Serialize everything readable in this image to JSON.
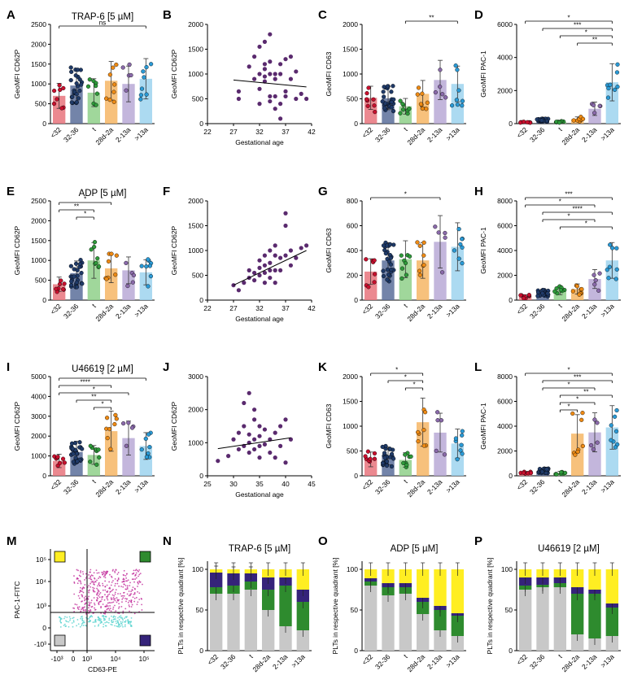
{
  "chart_data": [
    {
      "id": "A",
      "type": "bar",
      "title": "TRAP-6 [5 µM]",
      "ylabel": "GeoMFI CD62P",
      "categories": [
        "<32",
        "32-36",
        "t",
        "28d-2a",
        "2-13a",
        ">13a"
      ],
      "values": [
        700,
        960,
        780,
        1080,
        1000,
        1130
      ],
      "ylim": [
        0,
        2500
      ],
      "yticks": [
        0,
        500,
        1000,
        1500,
        2000,
        2500
      ],
      "annotations": [
        {
          "from": 0,
          "to": 5,
          "label": "ns"
        }
      ]
    },
    {
      "id": "B",
      "type": "scatter",
      "ylabel": "GeoMFI CD62P",
      "xlabel": "Gestational age",
      "xlim": [
        22,
        42
      ],
      "ylim": [
        0,
        2000
      ],
      "xticks": [
        22,
        27,
        32,
        37,
        42
      ],
      "yticks": [
        0,
        500,
        1000,
        1500,
        2000
      ],
      "points": [
        [
          28,
          500
        ],
        [
          28,
          650
        ],
        [
          30,
          1150
        ],
        [
          31,
          900
        ],
        [
          31,
          1350
        ],
        [
          32,
          1000
        ],
        [
          32,
          1550
        ],
        [
          32,
          700
        ],
        [
          32,
          400
        ],
        [
          33,
          1200
        ],
        [
          33,
          1100
        ],
        [
          33,
          950
        ],
        [
          33,
          850
        ],
        [
          33,
          1650
        ],
        [
          34,
          1000
        ],
        [
          34,
          1800
        ],
        [
          34,
          1250
        ],
        [
          34,
          550
        ],
        [
          34,
          450
        ],
        [
          35,
          1000
        ],
        [
          35,
          900
        ],
        [
          35,
          300
        ],
        [
          35,
          550
        ],
        [
          36,
          1200
        ],
        [
          36,
          1000
        ],
        [
          36,
          400
        ],
        [
          36,
          100
        ],
        [
          37,
          1300
        ],
        [
          37,
          650
        ],
        [
          37,
          550
        ],
        [
          38,
          1350
        ],
        [
          38,
          900
        ],
        [
          39,
          1050
        ],
        [
          39,
          500
        ],
        [
          40,
          600
        ],
        [
          41,
          500
        ]
      ],
      "trend": [
        [
          27,
          880
        ],
        [
          41,
          740
        ]
      ]
    },
    {
      "id": "C",
      "type": "bar",
      "title": "",
      "ylabel": "GeoMFI CD63",
      "categories": [
        "<32",
        "32-36",
        "t",
        "28d-2a",
        "2-13a",
        ">13a"
      ],
      "values": [
        520,
        510,
        350,
        600,
        880,
        800
      ],
      "ylim": [
        0,
        2000
      ],
      "yticks": [
        0,
        500,
        1000,
        1500,
        2000
      ],
      "annotations": [
        {
          "from": 2,
          "to": 5,
          "label": "**"
        }
      ]
    },
    {
      "id": "D",
      "type": "bar",
      "title": "",
      "ylabel": "GeoMFI PAC-1",
      "categories": [
        "<32",
        "32-36",
        "t",
        "28d-2a",
        "2-13a",
        ">13a"
      ],
      "values": [
        100,
        200,
        100,
        280,
        900,
        2500
      ],
      "ylim": [
        0,
        6000
      ],
      "yticks": [
        0,
        2000,
        4000,
        6000
      ],
      "annotations": [
        {
          "from": 0,
          "to": 5,
          "label": "*"
        },
        {
          "from": 1,
          "to": 5,
          "label": "***"
        },
        {
          "from": 2,
          "to": 5,
          "label": "*"
        },
        {
          "from": 3,
          "to": 5,
          "label": "**"
        }
      ]
    },
    {
      "id": "E",
      "type": "bar",
      "title": "ADP [5 µM]",
      "ylabel": "GeoMFI CD62P",
      "categories": [
        "<32",
        "32-36",
        "t",
        "28d-2a",
        "2-13a",
        ">13a"
      ],
      "values": [
        400,
        680,
        1000,
        800,
        750,
        700
      ],
      "ylim": [
        0,
        2500
      ],
      "yticks": [
        0,
        500,
        1000,
        1500,
        2000,
        2500
      ],
      "annotations": [
        {
          "from": 0,
          "to": 3,
          "label": "*"
        },
        {
          "from": 0,
          "to": 2,
          "label": "**"
        },
        {
          "from": 1,
          "to": 2,
          "label": "*"
        }
      ]
    },
    {
      "id": "F",
      "type": "scatter",
      "ylabel": "GeoMFI CD62P",
      "xlabel": "Gestational age",
      "xlim": [
        22,
        42
      ],
      "ylim": [
        0,
        2000
      ],
      "xticks": [
        22,
        27,
        32,
        37,
        42
      ],
      "yticks": [
        0,
        500,
        1000,
        1500,
        2000
      ],
      "points": [
        [
          27,
          300
        ],
        [
          28,
          200
        ],
        [
          29,
          350
        ],
        [
          30,
          450
        ],
        [
          30,
          600
        ],
        [
          31,
          400
        ],
        [
          31,
          550
        ],
        [
          32,
          500
        ],
        [
          32,
          650
        ],
        [
          32,
          800
        ],
        [
          33,
          350
        ],
        [
          33,
          550
        ],
        [
          33,
          700
        ],
        [
          33,
          900
        ],
        [
          34,
          450
        ],
        [
          34,
          600
        ],
        [
          34,
          750
        ],
        [
          34,
          1000
        ],
        [
          35,
          350
        ],
        [
          35,
          600
        ],
        [
          35,
          900
        ],
        [
          35,
          1100
        ],
        [
          36,
          600
        ],
        [
          36,
          850
        ],
        [
          37,
          900
        ],
        [
          37,
          1750
        ],
        [
          37,
          1500
        ],
        [
          38,
          700
        ],
        [
          38,
          1000
        ],
        [
          39,
          850
        ],
        [
          40,
          1050
        ],
        [
          41,
          1100
        ]
      ],
      "trend": [
        [
          27,
          300
        ],
        [
          41,
          1000
        ]
      ]
    },
    {
      "id": "G",
      "type": "bar",
      "title": "",
      "ylabel": "GeoMFI CD63",
      "categories": [
        "<32",
        "32-36",
        "t",
        "28d-2a",
        "2-13a",
        ">13a"
      ],
      "values": [
        230,
        320,
        330,
        320,
        470,
        430
      ],
      "ylim": [
        0,
        800
      ],
      "yticks": [
        0,
        200,
        400,
        600,
        800
      ],
      "annotations": [
        {
          "from": 0,
          "to": 4,
          "label": "*"
        }
      ]
    },
    {
      "id": "H",
      "type": "bar",
      "title": "",
      "ylabel": "GeoMFI PAC-1",
      "categories": [
        "<32",
        "32-36",
        "t",
        "28d-2a",
        "2-13a",
        ">13a"
      ],
      "values": [
        300,
        600,
        800,
        900,
        1700,
        3200
      ],
      "ylim": [
        0,
        8000
      ],
      "yticks": [
        0,
        2000,
        4000,
        6000,
        8000
      ],
      "annotations": [
        {
          "from": 0,
          "to": 5,
          "label": "***"
        },
        {
          "from": 0,
          "to": 4,
          "label": "*"
        },
        {
          "from": 1,
          "to": 5,
          "label": "****"
        },
        {
          "from": 1,
          "to": 4,
          "label": "*"
        },
        {
          "from": 2,
          "to": 5,
          "label": "*"
        }
      ]
    },
    {
      "id": "I",
      "type": "bar",
      "title": "U46619 [2 µM]",
      "ylabel": "GeoMFI CD62P",
      "categories": [
        "<32",
        "32-36",
        "t",
        "28d-2a",
        "2-13a",
        ">13a"
      ],
      "values": [
        750,
        1200,
        1050,
        2250,
        1900,
        1500
      ],
      "ylim": [
        0,
        5000
      ],
      "yticks": [
        0,
        1000,
        2000,
        3000,
        4000,
        5000
      ],
      "annotations": [
        {
          "from": 0,
          "to": 5,
          "label": "*"
        },
        {
          "from": 0,
          "to": 3,
          "label": "****"
        },
        {
          "from": 0,
          "to": 4,
          "label": "*"
        },
        {
          "from": 1,
          "to": 3,
          "label": "**"
        },
        {
          "from": 2,
          "to": 3,
          "label": "*"
        }
      ]
    },
    {
      "id": "J",
      "type": "scatter",
      "ylabel": "GeoMFI CD62P",
      "xlabel": "Gestational age",
      "xlim": [
        25,
        45
      ],
      "ylim": [
        0,
        3000
      ],
      "xticks": [
        25,
        30,
        35,
        40,
        45
      ],
      "yticks": [
        0,
        1000,
        2000,
        3000
      ],
      "points": [
        [
          27,
          450
        ],
        [
          29,
          600
        ],
        [
          30,
          1100
        ],
        [
          31,
          800
        ],
        [
          31,
          1300
        ],
        [
          32,
          900
        ],
        [
          32,
          2200
        ],
        [
          32,
          1500
        ],
        [
          33,
          1000
        ],
        [
          33,
          700
        ],
        [
          33,
          2500
        ],
        [
          33,
          1250
        ],
        [
          34,
          800
        ],
        [
          34,
          1100
        ],
        [
          34,
          2000
        ],
        [
          34,
          1700
        ],
        [
          35,
          1200
        ],
        [
          35,
          900
        ],
        [
          35,
          550
        ],
        [
          35,
          1500
        ],
        [
          36,
          950
        ],
        [
          36,
          1400
        ],
        [
          37,
          1100
        ],
        [
          37,
          700
        ],
        [
          38,
          1300
        ],
        [
          38,
          550
        ],
        [
          39,
          900
        ],
        [
          39,
          1500
        ],
        [
          40,
          400
        ],
        [
          40,
          1700
        ],
        [
          41,
          1100
        ]
      ],
      "trend": [
        [
          27,
          820
        ],
        [
          41,
          1150
        ]
      ]
    },
    {
      "id": "K",
      "type": "bar",
      "title": "",
      "ylabel": "GeoMFI CD63",
      "categories": [
        "<32",
        "32-36",
        "t",
        "28d-2a",
        "2-13a",
        ">13a"
      ],
      "values": [
        330,
        400,
        320,
        1080,
        870,
        650
      ],
      "ylim": [
        0,
        2000
      ],
      "yticks": [
        0,
        500,
        1000,
        1500,
        2000
      ],
      "annotations": [
        {
          "from": 0,
          "to": 3,
          "label": "*"
        },
        {
          "from": 1,
          "to": 3,
          "label": "*"
        },
        {
          "from": 2,
          "to": 3,
          "label": "*"
        }
      ]
    },
    {
      "id": "L",
      "type": "bar",
      "title": "",
      "ylabel": "GeoMFI PAC-1",
      "categories": [
        "<32",
        "32-36",
        "t",
        "28d-2a",
        "2-13a",
        ">13a"
      ],
      "values": [
        250,
        400,
        250,
        3400,
        3500,
        3900
      ],
      "ylim": [
        0,
        8000
      ],
      "yticks": [
        0,
        2000,
        4000,
        6000,
        8000
      ],
      "annotations": [
        {
          "from": 0,
          "to": 5,
          "label": "*"
        },
        {
          "from": 1,
          "to": 5,
          "label": "***"
        },
        {
          "from": 1,
          "to": 4,
          "label": "*"
        },
        {
          "from": 2,
          "to": 5,
          "label": "**"
        },
        {
          "from": 2,
          "to": 4,
          "label": "*"
        },
        {
          "from": 2,
          "to": 3,
          "label": "*"
        }
      ]
    },
    {
      "id": "M",
      "type": "scatter",
      "title": "",
      "ylabel": "PAC-1-FITC",
      "xlabel": "CD63-PE",
      "xticks": [
        "-10³",
        "0",
        "10³",
        "10⁴",
        "10⁵"
      ],
      "yticks": [
        "-10³",
        "0",
        "10³",
        "10⁴",
        "10⁵"
      ]
    },
    {
      "id": "N",
      "type": "bar",
      "stacked": true,
      "title": "TRAP-6 [5 µM]",
      "ylabel": "PLTs in respective quadrant [%]",
      "categories": [
        "<32",
        "32-36",
        "t",
        "28d-2a",
        "2-13a",
        ">13a"
      ],
      "ylim": [
        0,
        110
      ],
      "yticks": [
        0,
        50,
        100
      ],
      "series": [
        {
          "values": [
            70,
            70,
            75,
            50,
            30,
            25
          ]
        },
        {
          "values": [
            8,
            10,
            10,
            25,
            50,
            35
          ]
        },
        {
          "values": [
            18,
            15,
            10,
            15,
            10,
            15
          ]
        },
        {
          "values": [
            4,
            5,
            5,
            10,
            10,
            25
          ]
        }
      ]
    },
    {
      "id": "O",
      "type": "bar",
      "stacked": true,
      "title": "ADP [5 µM]",
      "ylabel": "PLTs in respective quadrant [%]",
      "categories": [
        "<32",
        "32-36",
        "t",
        "28d-2a",
        "2-13a",
        ">13a"
      ],
      "ylim": [
        0,
        110
      ],
      "yticks": [
        0,
        50,
        100
      ],
      "series": [
        {
          "values": [
            80,
            68,
            70,
            45,
            25,
            18
          ]
        },
        {
          "values": [
            5,
            10,
            8,
            15,
            25,
            25
          ]
        },
        {
          "values": [
            4,
            5,
            5,
            5,
            5,
            3
          ]
        },
        {
          "values": [
            11,
            17,
            17,
            35,
            45,
            54
          ]
        }
      ]
    },
    {
      "id": "P",
      "type": "bar",
      "stacked": true,
      "title": "U46619 [2 µM]",
      "ylabel": "PLTs in respective quadrant [%]",
      "categories": [
        "<32",
        "32-36",
        "t",
        "28d-2a",
        "2-13a",
        ">13a"
      ],
      "ylim": [
        0,
        110
      ],
      "yticks": [
        0,
        50,
        100
      ],
      "series": [
        {
          "values": [
            75,
            78,
            78,
            20,
            15,
            18
          ]
        },
        {
          "values": [
            5,
            3,
            5,
            50,
            55,
            35
          ]
        },
        {
          "values": [
            10,
            9,
            7,
            8,
            5,
            5
          ]
        },
        {
          "values": [
            10,
            10,
            10,
            22,
            25,
            42
          ]
        }
      ]
    }
  ],
  "colors": {
    "g1": "#e8747c",
    "g2": "#5a6f9a",
    "g3": "#8fd08a",
    "g4": "#f6b665",
    "g5": "#b9a9d6",
    "g6": "#9ed3ef",
    "scatter": "#5a2a6e",
    "q_gray": "#c8c8c8",
    "q_green": "#2e8b2e",
    "q_navy": "#35237a",
    "q_yellow": "#ffee22"
  },
  "dot_colors": [
    "#c8102e",
    "#1f3a68",
    "#2e9a3a",
    "#ee8a14",
    "#8a6aaa",
    "#2a9ad6"
  ]
}
